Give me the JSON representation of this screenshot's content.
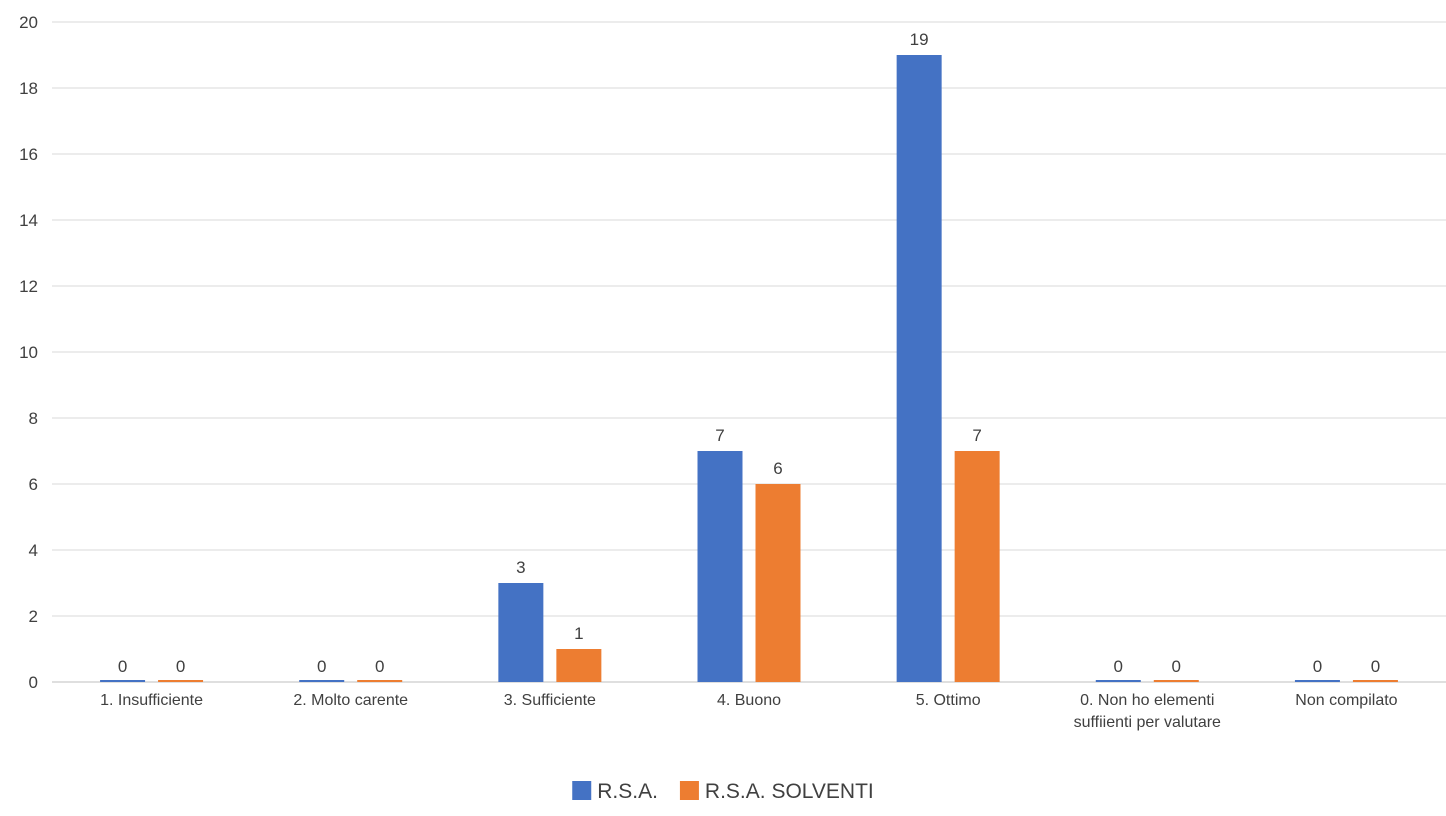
{
  "chart_data": {
    "type": "bar",
    "categories": [
      [
        "1. Insufficiente"
      ],
      [
        "2. Molto carente"
      ],
      [
        "3. Sufficiente"
      ],
      [
        "4. Buono"
      ],
      [
        "5. Ottimo"
      ],
      [
        "0. Non ho elementi",
        "suffiienti per valutare"
      ],
      [
        "Non compilato"
      ]
    ],
    "series": [
      {
        "name": "R.S.A.",
        "color": "#4472C4",
        "values": [
          0,
          0,
          3,
          7,
          19,
          0,
          0
        ]
      },
      {
        "name": "R.S.A. SOLVENTI",
        "color": "#ED7D31",
        "values": [
          0,
          0,
          1,
          6,
          7,
          0,
          0
        ]
      }
    ],
    "ylim": [
      0,
      20
    ],
    "yticks": [
      0,
      2,
      4,
      6,
      8,
      10,
      12,
      14,
      16,
      18,
      20
    ],
    "grid": true,
    "gridColor": "#D9D9D9",
    "data_labels": true,
    "legend": "bottom-center"
  }
}
